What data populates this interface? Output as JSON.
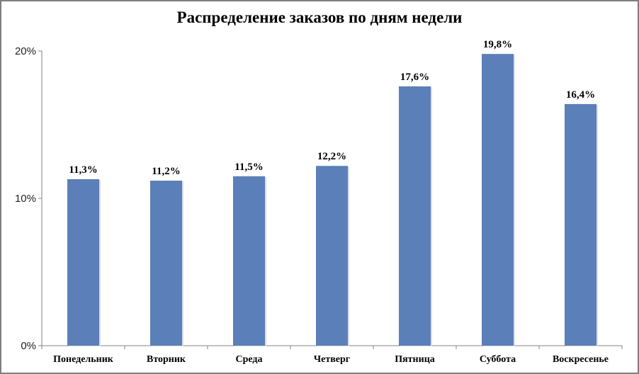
{
  "chart_data": {
    "type": "bar",
    "title": "Распределение заказов по дням недели",
    "categories": [
      "Понедельник",
      "Вторник",
      "Среда",
      "Четверг",
      "Пятница",
      "Суббота",
      "Воскресенье"
    ],
    "values": [
      11.3,
      11.2,
      11.5,
      12.2,
      17.6,
      19.8,
      16.4
    ],
    "data_labels": [
      "11,3%",
      "11,2%",
      "11,5%",
      "12,2%",
      "17,6%",
      "19,8%",
      "16,4%"
    ],
    "xlabel": "",
    "ylabel": "",
    "ylim": [
      0,
      20
    ],
    "yticks": [
      0,
      10,
      20
    ],
    "ytick_labels": [
      "0%",
      "10%",
      "20%"
    ],
    "grid": false,
    "legend": "none",
    "bar_color": "#5b7fb8"
  }
}
